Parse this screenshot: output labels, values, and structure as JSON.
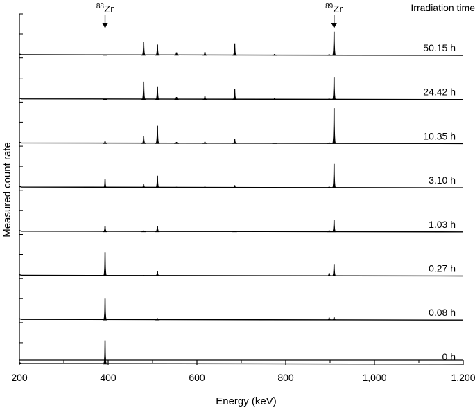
{
  "chart_data": {
    "type": "line",
    "xlabel": "Energy (keV)",
    "ylabel": "Measured count rate",
    "xlim": [
      200,
      1200
    ],
    "x_ticks": [
      200,
      400,
      600,
      800,
      1000,
      1200
    ],
    "x_tick_labels": [
      "200",
      "400",
      "600",
      "800",
      "1,000",
      "1,200"
    ],
    "x_minor_step": 100,
    "grid": false,
    "legend_header": "Irradiation time",
    "annotations": [
      {
        "mass": "88",
        "symbol": "Zr",
        "energy": 393
      },
      {
        "mass": "89",
        "symbol": "Zr",
        "energy": 909
      }
    ],
    "series": [
      {
        "name": "50.15 h",
        "peaks": [
          [
            393,
            0.02
          ],
          [
            480,
            0.55
          ],
          [
            511,
            0.45
          ],
          [
            554,
            0.12
          ],
          [
            618,
            0.14
          ],
          [
            685,
            0.5
          ],
          [
            775,
            0.05
          ],
          [
            898,
            0.04
          ],
          [
            909,
            1.0
          ]
        ]
      },
      {
        "name": "24.42 h",
        "peaks": [
          [
            393,
            0.03
          ],
          [
            480,
            0.75
          ],
          [
            511,
            0.55
          ],
          [
            554,
            0.1
          ],
          [
            618,
            0.13
          ],
          [
            685,
            0.45
          ],
          [
            775,
            0.05
          ],
          [
            898,
            0.03
          ],
          [
            909,
            0.95
          ]
        ]
      },
      {
        "name": "10.35 h",
        "peaks": [
          [
            393,
            0.1
          ],
          [
            480,
            0.3
          ],
          [
            511,
            0.75
          ],
          [
            554,
            0.06
          ],
          [
            618,
            0.07
          ],
          [
            685,
            0.2
          ],
          [
            775,
            0.03
          ],
          [
            898,
            0.04
          ],
          [
            909,
            1.5
          ]
        ]
      },
      {
        "name": "3.10 h",
        "peaks": [
          [
            393,
            0.35
          ],
          [
            480,
            0.15
          ],
          [
            511,
            0.5
          ],
          [
            554,
            0.03
          ],
          [
            618,
            0.04
          ],
          [
            685,
            0.1
          ],
          [
            898,
            0.04
          ],
          [
            909,
            1.0
          ]
        ]
      },
      {
        "name": "1.03 h",
        "peaks": [
          [
            393,
            0.25
          ],
          [
            480,
            0.05
          ],
          [
            511,
            0.25
          ],
          [
            685,
            0.03
          ],
          [
            898,
            0.06
          ],
          [
            909,
            0.5
          ]
        ]
      },
      {
        "name": "0.27 h",
        "peaks": [
          [
            393,
            1.0
          ],
          [
            480,
            0.03
          ],
          [
            511,
            0.2
          ],
          [
            898,
            0.12
          ],
          [
            909,
            0.5
          ]
        ]
      },
      {
        "name": "0.08 h",
        "peaks": [
          [
            393,
            0.9
          ],
          [
            511,
            0.07
          ],
          [
            898,
            0.1
          ],
          [
            909,
            0.12
          ]
        ]
      },
      {
        "name": "0 h",
        "peaks": [
          [
            393,
            1.0
          ]
        ]
      }
    ]
  }
}
